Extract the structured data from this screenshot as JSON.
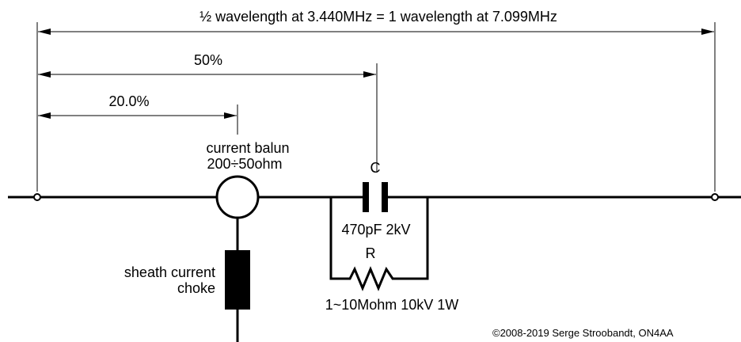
{
  "title": "½ wavelength at 3.440MHz = 1 wavelength at 7.099MHz",
  "dimensions": {
    "half": "50%",
    "balun_position": "20.0%"
  },
  "balun": {
    "label": "current balun",
    "ratio": "200÷50ohm"
  },
  "capacitor": {
    "label": "C",
    "value": "470pF 2kV"
  },
  "resistor": {
    "label": "R",
    "value": "1~10Mohm 10kV 1W"
  },
  "choke": {
    "line1": "sheath current",
    "line2": "choke"
  },
  "copyright": "©2008-2019 Serge Stroobandt, ON4AA"
}
